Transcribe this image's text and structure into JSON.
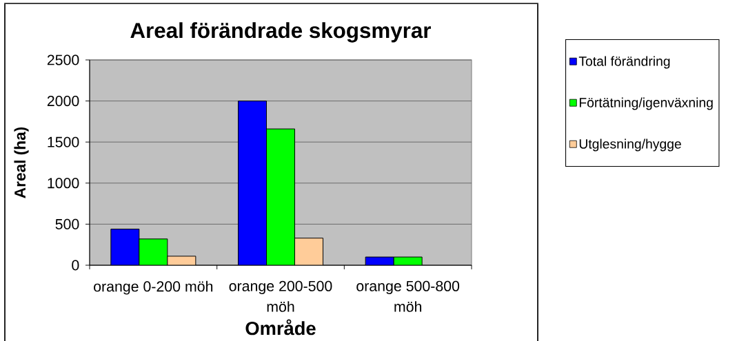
{
  "chart_data": {
    "type": "bar",
    "title": "Areal förändrade skogsmyrar",
    "xlabel": "Område",
    "ylabel": "Areal (ha)",
    "categories": [
      "orange 0-200 möh",
      "orange 200-500 möh",
      "orange 500-800 möh"
    ],
    "series": [
      {
        "name": "Total förändring",
        "color": "#0000ff",
        "values": [
          440,
          2000,
          100
        ]
      },
      {
        "name": "Förtätning/igenväxning",
        "color": "#00ff00",
        "values": [
          320,
          1660,
          100
        ]
      },
      {
        "name": "Utglesning/hygge",
        "color": "#ffcc99",
        "values": [
          110,
          330,
          null
        ]
      }
    ],
    "ylim": [
      0,
      2500
    ],
    "yticks": [
      0,
      500,
      1000,
      1500,
      2000,
      2500
    ],
    "grid": "y",
    "legend": "right"
  }
}
